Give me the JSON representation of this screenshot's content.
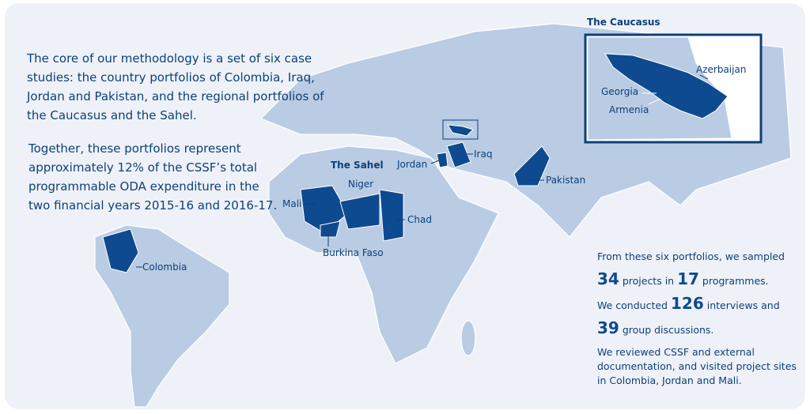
{
  "intro": [
    [
      "The core of our methodology is a set of six case",
      "studies: the country portfolios of Colombia, Iraq,",
      "Jordan and Pakistan, and the regional portfolios of",
      "the Caucasus and the Sahel."
    ],
    [
      "Together, these portfolios represent",
      "approximately 12% of the CSSF’s total",
      "programmable ODA expenditure in the",
      "two financial years 2015-16 and 2016-17."
    ]
  ],
  "labels": {
    "colombia": "Colombia",
    "sahel": "The Sahel",
    "niger": "Niger",
    "mali": "Mali",
    "chad": "Chad",
    "burkina_faso": "Burkina Faso",
    "jordan": "Jordan",
    "iraq": "Iraq",
    "pakistan": "Pakistan"
  },
  "inset": {
    "title": "The Caucasus",
    "azerbaijan": "Azerbaijan",
    "georgia": "Georgia",
    "armenia": "Armenia"
  },
  "stats": {
    "sampled_intro": "From these six portfolios, we sampled",
    "projects": 34,
    "projects_text": "projects in",
    "programmes": 17,
    "programmes_text": "programmes.",
    "conducted_text": "We conducted",
    "interviews": 126,
    "interviews_text": "interviews and",
    "group_discussions": 39,
    "group_discussions_text": "group discussions.",
    "reviewed": [
      "We reviewed CSSF and external",
      "documentation, and visited project sites",
      "in Colombia, Jordan and Mali."
    ]
  }
}
